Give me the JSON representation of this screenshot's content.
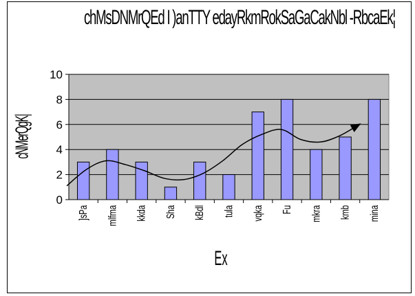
{
  "chart_data": {
    "type": "bar",
    "title": "chMsDNMrQEd I )anTTY edayRkmRokSaGaCakNbl -RbcaEk¦",
    "xlabel": "Ex",
    "ylabel": "cNMerQgK|",
    "categories": [
      "]sPa",
      "mlfma",
      "kkda",
      "Sha",
      "kBdl",
      "tula",
      "vqka",
      "Fu",
      "mkra",
      "kmb",
      "mina"
    ],
    "values": [
      3,
      4,
      3,
      1,
      3,
      2,
      7,
      8,
      4,
      5,
      8
    ],
    "ylim": [
      0,
      10
    ],
    "yticks": [
      0,
      2,
      4,
      6,
      8,
      10
    ],
    "trend": [
      1.1,
      2.4,
      3.1,
      2.8,
      2.3,
      1.7,
      1.6,
      2.1,
      3.1,
      4.4,
      5.2,
      5.6,
      4.8,
      4.6,
      5.1,
      6.0
    ],
    "colors": {
      "bar": "#9999ff",
      "plot_bg": "#c0c0c0",
      "trend": "#000000"
    },
    "grid": true
  }
}
